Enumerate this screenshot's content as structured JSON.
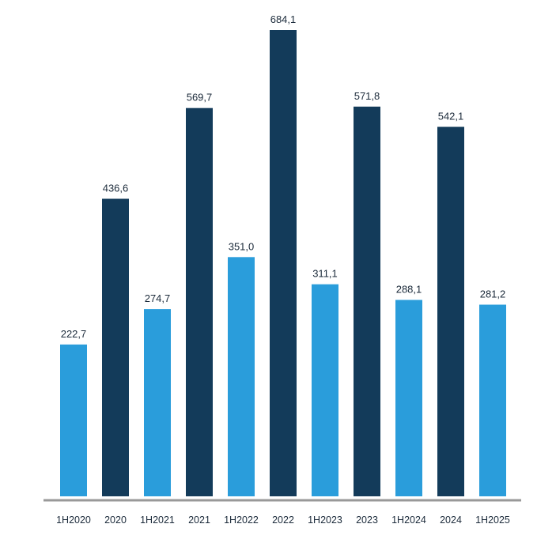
{
  "chart_data": {
    "type": "bar",
    "title": "",
    "xlabel": "",
    "ylabel": "",
    "categories": [
      "1H2020",
      "2020",
      "1H2021",
      "2021",
      "1H2022",
      "2022",
      "1H2023",
      "2023",
      "1H2024",
      "2024",
      "1H2025"
    ],
    "values": [
      222.7,
      436.6,
      274.7,
      569.7,
      351.0,
      684.1,
      311.1,
      571.8,
      288.1,
      542.1,
      281.2
    ],
    "value_labels": [
      "222,7",
      "436,6",
      "274,7",
      "569,7",
      "351,0",
      "684,1",
      "311,1",
      "571,8",
      "288,1",
      "542,1",
      "281,2"
    ],
    "bar_period": [
      "half-year",
      "full-year",
      "half-year",
      "full-year",
      "half-year",
      "full-year",
      "half-year",
      "full-year",
      "half-year",
      "full-year",
      "half-year"
    ],
    "ylim": [
      0,
      684.1
    ],
    "grid": false,
    "legend": "none",
    "colors": {
      "half-year": "#2a9ddb",
      "full-year": "#133b5a",
      "axis": "#999999",
      "label": "#1b2a3a"
    }
  }
}
